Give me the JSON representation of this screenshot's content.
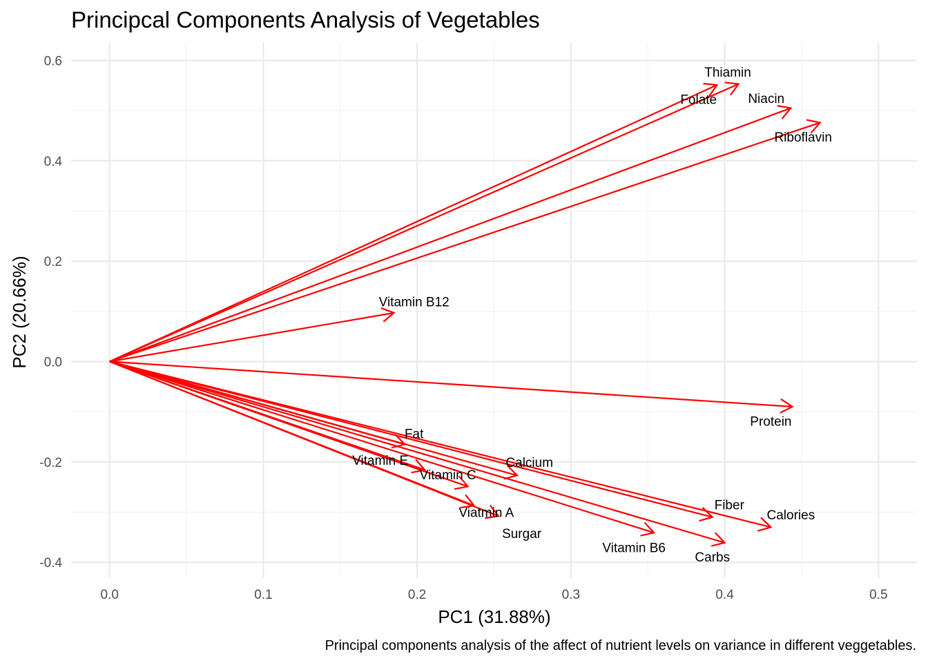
{
  "chart_data": {
    "type": "biplot",
    "title": "Principcal Components Analysis of Vegetables",
    "xlabel": "PC1 (31.88%)",
    "ylabel": "PC2 (20.66%)",
    "caption": "Principal components analysis of the affect of nutrient levels on variance in different veggetables.",
    "xlim": [
      -0.025,
      0.525
    ],
    "ylim": [
      -0.43,
      0.635
    ],
    "xticks": [
      0.0,
      0.1,
      0.2,
      0.3,
      0.4,
      0.5
    ],
    "xtick_labels": [
      "0.0",
      "0.1",
      "0.2",
      "0.3",
      "0.4",
      "0.5"
    ],
    "yticks": [
      -0.4,
      -0.2,
      0.0,
      0.2,
      0.4,
      0.6
    ],
    "ytick_labels": [
      "-0.4",
      "-0.2",
      "0.0",
      "0.2",
      "0.4",
      "0.6"
    ],
    "grid": true,
    "arrow_color": "#ff0000",
    "label_segment_color": "#000000",
    "vectors": [
      {
        "label": "Thiamin",
        "x": 0.409,
        "y": 0.553,
        "label_x": 0.402,
        "label_y": 0.577
      },
      {
        "label": "Folate",
        "x": 0.395,
        "y": 0.551,
        "label_x": 0.383,
        "label_y": 0.523
      },
      {
        "label": "Niacin",
        "x": 0.443,
        "y": 0.505,
        "label_x": 0.427,
        "label_y": 0.525
      },
      {
        "label": "Riboflavin",
        "x": 0.462,
        "y": 0.476,
        "label_x": 0.451,
        "label_y": 0.448
      },
      {
        "label": "Vitamin B12",
        "x": 0.185,
        "y": 0.097,
        "label_x": 0.198,
        "label_y": 0.12
      },
      {
        "label": "Protein",
        "x": 0.444,
        "y": -0.09,
        "label_x": 0.43,
        "label_y": -0.118
      },
      {
        "label": "Fat",
        "x": 0.192,
        "y": -0.165,
        "label_x": 0.198,
        "label_y": -0.143
      },
      {
        "label": "Calcium",
        "x": 0.265,
        "y": -0.227,
        "label_x": 0.273,
        "label_y": -0.2
      },
      {
        "label": "Vitamin E",
        "x": 0.205,
        "y": -0.216,
        "label_x": 0.176,
        "label_y": -0.196,
        "segment": true
      },
      {
        "label": "Vitamin C",
        "x": 0.233,
        "y": -0.249,
        "label_x": 0.22,
        "label_y": -0.225
      },
      {
        "label": "Viatmin A",
        "x": 0.237,
        "y": -0.287,
        "label_x": 0.245,
        "label_y": -0.3
      },
      {
        "label": "Surgar",
        "x": 0.253,
        "y": -0.308,
        "label_x": 0.268,
        "label_y": -0.342
      },
      {
        "label": "Fiber",
        "x": 0.392,
        "y": -0.31,
        "label_x": 0.403,
        "label_y": -0.285
      },
      {
        "label": "Calories",
        "x": 0.43,
        "y": -0.33,
        "label_x": 0.443,
        "label_y": -0.305
      },
      {
        "label": "Vitamin B6",
        "x": 0.354,
        "y": -0.341,
        "label_x": 0.341,
        "label_y": -0.37
      },
      {
        "label": "Carbs",
        "x": 0.4,
        "y": -0.361,
        "label_x": 0.392,
        "label_y": -0.389
      }
    ]
  }
}
